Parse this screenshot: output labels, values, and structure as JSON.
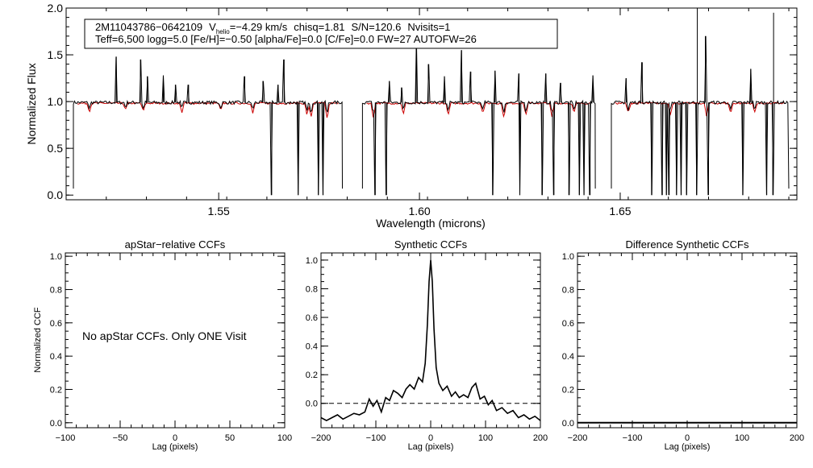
{
  "chart_data": [
    {
      "type": "line",
      "name": "spectrum",
      "xlabel": "Wavelength (microns)",
      "ylabel": "Normalized Flux",
      "xlim": [
        1.512,
        1.694
      ],
      "ylim": [
        -0.05,
        2.0
      ],
      "xticks": [
        1.55,
        1.6,
        1.65
      ],
      "xtick_labels": [
        "1.55",
        "1.60",
        "1.65"
      ],
      "yticks": [
        0.0,
        0.5,
        1.0,
        1.5,
        2.0
      ],
      "ytick_labels": [
        "0.0",
        "0.5",
        "1.0",
        "1.5",
        "2.0"
      ],
      "annotation": {
        "line1": {
          "star_id": "2M11043786−0642109",
          "vhelio_symbol": "V",
          "vhelio_subscript": "helio",
          "vhelio_value": "=−4.29 km/s",
          "chisq": "chisq=1.81",
          "snr": "S/N=120.6",
          "nvisits": "Nvisits=1"
        },
        "line2": "Teff=6,500 logg=5.0 [Fe/H]=−0.50 [alpha/Fe]=0.0 [C/Fe]=0.0 FW=27 AUTOFW=26"
      },
      "series": [
        {
          "name": "observed",
          "color": "#000000"
        },
        {
          "name": "model",
          "color": "#cc0000"
        }
      ],
      "chips": [
        [
          1.5138,
          1.5808
        ],
        [
          1.5858,
          1.6438
        ],
        [
          1.6478,
          1.692
        ]
      ],
      "continuum": 0.99,
      "emission_spikes": [
        [
          1.5245,
          1.48
        ],
        [
          1.5305,
          1.45
        ],
        [
          1.5322,
          1.27
        ],
        [
          1.5362,
          1.28
        ],
        [
          1.5392,
          1.18
        ],
        [
          1.5425,
          1.18
        ],
        [
          1.5565,
          1.27
        ],
        [
          1.561,
          1.22
        ],
        [
          1.5648,
          1.18
        ],
        [
          1.5663,
          1.45
        ],
        [
          1.5925,
          1.22
        ],
        [
          1.5955,
          1.15
        ],
        [
          1.5992,
          1.68
        ],
        [
          1.6022,
          1.4
        ],
        [
          1.6062,
          1.27
        ],
        [
          1.6105,
          1.55
        ],
        [
          1.6128,
          1.32
        ],
        [
          1.6188,
          1.33
        ],
        [
          1.6248,
          1.3
        ],
        [
          1.6315,
          1.3
        ],
        [
          1.6352,
          1.2
        ],
        [
          1.6432,
          1.28
        ],
        [
          1.6515,
          1.25
        ],
        [
          1.6555,
          1.42
        ],
        [
          1.6692,
          2.0
        ],
        [
          1.6712,
          1.7
        ],
        [
          1.6825,
          1.35
        ],
        [
          1.6882,
          1.95
        ]
      ],
      "absorption_dips": [
        [
          1.5632,
          0.0
        ],
        [
          1.5698,
          0.0
        ],
        [
          1.5748,
          0.0
        ],
        [
          1.576,
          0.0
        ],
        [
          1.589,
          0.0
        ],
        [
          1.5918,
          0.0
        ],
        [
          1.6182,
          0.0
        ],
        [
          1.625,
          0.0
        ],
        [
          1.6305,
          0.0
        ],
        [
          1.6335,
          0.0
        ],
        [
          1.6372,
          0.0
        ],
        [
          1.6398,
          0.0
        ],
        [
          1.641,
          0.0
        ],
        [
          1.6425,
          0.0
        ],
        [
          1.6578,
          0.0
        ],
        [
          1.6605,
          0.0
        ],
        [
          1.6615,
          0.0
        ],
        [
          1.6622,
          0.0
        ],
        [
          1.664,
          0.0
        ],
        [
          1.6652,
          0.0
        ],
        [
          1.6665,
          0.0
        ],
        [
          1.669,
          0.0
        ],
        [
          1.672,
          0.0
        ],
        [
          1.6805,
          0.0
        ],
        [
          1.6865,
          0.0
        ],
        [
          1.688,
          0.0
        ]
      ],
      "model_lines": [
        [
          1.5178,
          0.9
        ],
        [
          1.5268,
          0.92
        ],
        [
          1.5312,
          0.9
        ],
        [
          1.5408,
          0.89
        ],
        [
          1.5505,
          0.91
        ],
        [
          1.5585,
          0.88
        ],
        [
          1.572,
          0.86
        ],
        [
          1.573,
          0.84
        ],
        [
          1.577,
          0.82
        ],
        [
          1.5885,
          0.84
        ],
        [
          1.596,
          0.87
        ],
        [
          1.6072,
          0.86
        ],
        [
          1.6158,
          0.88
        ],
        [
          1.621,
          0.83
        ],
        [
          1.6265,
          0.86
        ],
        [
          1.633,
          0.84
        ],
        [
          1.6385,
          0.88
        ],
        [
          1.652,
          0.88
        ],
        [
          1.6625,
          0.87
        ],
        [
          1.6715,
          0.85
        ],
        [
          1.6775,
          0.88
        ],
        [
          1.6835,
          0.89
        ]
      ]
    },
    {
      "type": "line",
      "name": "apstar-ccf",
      "title": "apStar−relative CCFs",
      "ylabel": "Normalized CCF",
      "xlabel": "Lag (pixels)",
      "xlim": [
        -100,
        100
      ],
      "ylim": [
        -0.03,
        1.02
      ],
      "xticks": [
        -100,
        -50,
        0,
        50,
        100
      ],
      "xtick_labels": [
        "−100",
        "−50",
        "0",
        "50",
        "100"
      ],
      "yticks": [
        0.0,
        0.2,
        0.4,
        0.6,
        0.8,
        1.0
      ],
      "ytick_labels": [
        "0.0",
        "0.2",
        "0.4",
        "0.6",
        "0.8",
        "1.0"
      ],
      "message": "No apStar CCFs.  Only ONE Visit"
    },
    {
      "type": "line",
      "name": "synthetic-ccf",
      "title": "Synthetic CCFs",
      "xlabel": "Lag (pixels)",
      "xlim": [
        -200,
        200
      ],
      "ylim": [
        -0.17,
        1.05
      ],
      "xticks": [
        -200,
        -100,
        0,
        100,
        200
      ],
      "xtick_labels": [
        "−200",
        "−100",
        "0",
        "100",
        "200"
      ],
      "yticks": [
        0.0,
        0.2,
        0.4,
        0.6,
        0.8,
        1.0
      ],
      "ytick_labels": [
        "0.0",
        "0.2",
        "0.4",
        "0.6",
        "0.8",
        "1.0"
      ],
      "zero_line": 0.0,
      "x": [
        -200,
        -190,
        -180,
        -170,
        -160,
        -150,
        -140,
        -130,
        -120,
        -112,
        -105,
        -98,
        -90,
        -82,
        -75,
        -68,
        -60,
        -52,
        -45,
        -38,
        -30,
        -22,
        -15,
        -10,
        -6,
        -3,
        0,
        3,
        6,
        10,
        15,
        22,
        30,
        38,
        45,
        52,
        60,
        68,
        75,
        82,
        90,
        98,
        105,
        112,
        120,
        130,
        140,
        150,
        160,
        170,
        180,
        190,
        200
      ],
      "values": [
        -0.1,
        -0.12,
        -0.1,
        -0.08,
        -0.11,
        -0.09,
        -0.07,
        -0.08,
        -0.06,
        0.03,
        -0.02,
        0.02,
        -0.06,
        0.04,
        0.02,
        0.09,
        0.07,
        0.04,
        0.1,
        0.13,
        0.1,
        0.18,
        0.15,
        0.28,
        0.55,
        0.85,
        1.0,
        0.85,
        0.52,
        0.25,
        0.14,
        0.09,
        0.12,
        0.05,
        0.08,
        0.04,
        0.06,
        0.04,
        0.11,
        0.14,
        0.03,
        0.05,
        -0.01,
        0.02,
        -0.05,
        -0.03,
        -0.07,
        -0.05,
        -0.1,
        -0.08,
        -0.11,
        -0.09,
        -0.12
      ]
    },
    {
      "type": "line",
      "name": "difference-ccf",
      "title": "Difference Synthetic CCFs",
      "xlabel": "Lag (pixels)",
      "xlim": [
        -200,
        200
      ],
      "ylim": [
        -0.03,
        1.02
      ],
      "xticks": [
        -200,
        -100,
        0,
        100,
        200
      ],
      "xtick_labels": [
        "−200",
        "−100",
        "0",
        "100",
        "200"
      ],
      "yticks": [
        0.0,
        0.2,
        0.4,
        0.6,
        0.8,
        1.0
      ],
      "ytick_labels": [
        "0.0",
        "0.2",
        "0.4",
        "0.6",
        "0.8",
        "1.0"
      ],
      "x": [
        -200,
        200
      ],
      "values": [
        0.0,
        0.0
      ]
    }
  ]
}
